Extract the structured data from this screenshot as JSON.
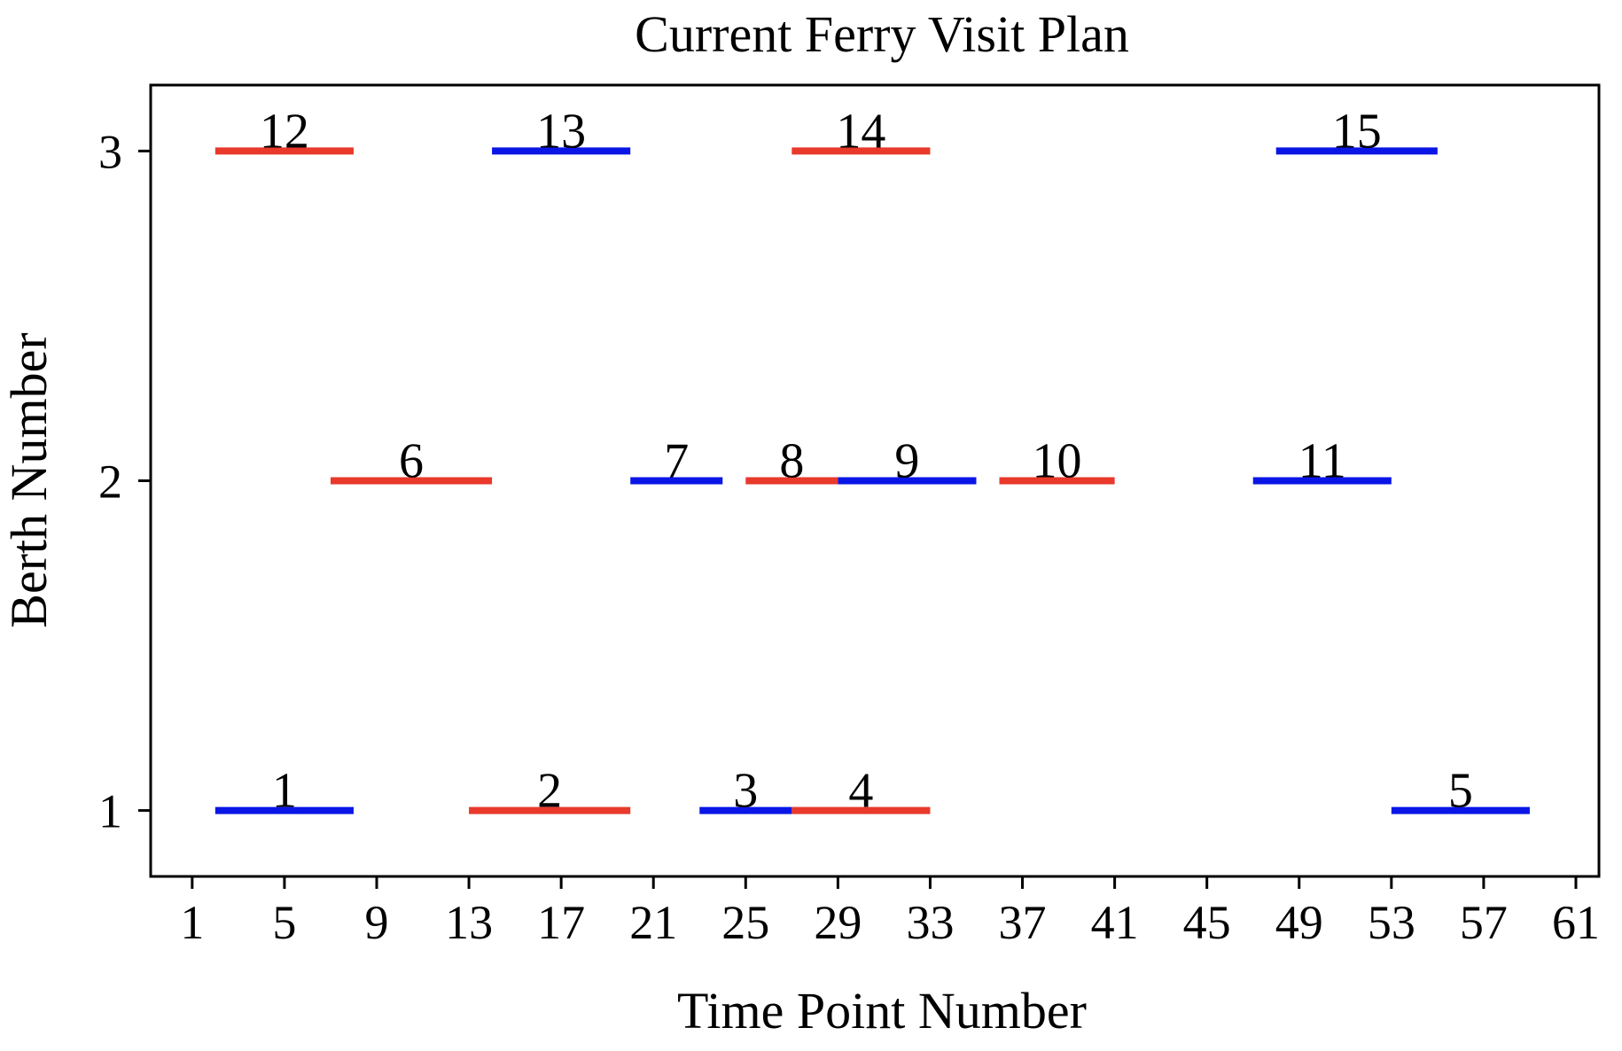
{
  "chart_data": {
    "type": "segments",
    "title": "Current Ferry Visit Plan",
    "xlabel": "Time Point Number",
    "ylabel": "Berth Number",
    "xlim": [
      -0.8,
      62
    ],
    "ylim": [
      0.8,
      3.2
    ],
    "xticks": [
      1,
      5,
      9,
      13,
      17,
      21,
      25,
      29,
      33,
      37,
      41,
      45,
      49,
      53,
      57,
      61
    ],
    "yticks": [
      1,
      2,
      3
    ],
    "grid": false,
    "colors": {
      "red": "#e8392b",
      "blue": "#0a16e6"
    },
    "segments": [
      {
        "label": "1",
        "berth": 1,
        "start": 2,
        "end": 8,
        "color": "blue"
      },
      {
        "label": "2",
        "berth": 1,
        "start": 13,
        "end": 20,
        "color": "red"
      },
      {
        "label": "3",
        "berth": 1,
        "start": 23,
        "end": 27,
        "color": "blue"
      },
      {
        "label": "4",
        "berth": 1,
        "start": 27,
        "end": 33,
        "color": "red"
      },
      {
        "label": "5",
        "berth": 1,
        "start": 53,
        "end": 59,
        "color": "blue"
      },
      {
        "label": "6",
        "berth": 2,
        "start": 7,
        "end": 14,
        "color": "red"
      },
      {
        "label": "7",
        "berth": 2,
        "start": 20,
        "end": 24,
        "color": "blue"
      },
      {
        "label": "8",
        "berth": 2,
        "start": 25,
        "end": 29,
        "color": "red"
      },
      {
        "label": "9",
        "berth": 2,
        "start": 29,
        "end": 35,
        "color": "blue"
      },
      {
        "label": "10",
        "berth": 2,
        "start": 36,
        "end": 41,
        "color": "red"
      },
      {
        "label": "11",
        "berth": 2,
        "start": 47,
        "end": 53,
        "color": "blue"
      },
      {
        "label": "12",
        "berth": 3,
        "start": 2,
        "end": 8,
        "color": "red"
      },
      {
        "label": "13",
        "berth": 3,
        "start": 14,
        "end": 20,
        "color": "blue"
      },
      {
        "label": "14",
        "berth": 3,
        "start": 27,
        "end": 33,
        "color": "red"
      },
      {
        "label": "15",
        "berth": 3,
        "start": 48,
        "end": 55,
        "color": "blue"
      }
    ]
  }
}
